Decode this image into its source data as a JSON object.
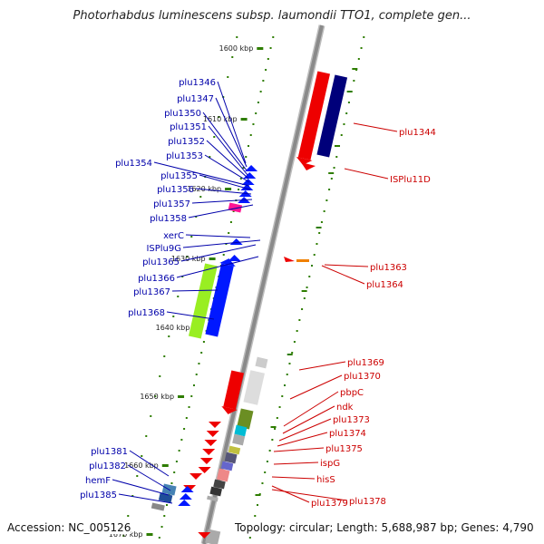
{
  "title": "Photorhabdus luminescens subsp. laumondii TTO1, complete gen...",
  "footer": {
    "accession": "Accession: NC_005126",
    "topology": "Topology: circular; Length: 5,688,987 bp; Genes: 4,790"
  },
  "colors": {
    "backbone": "#8a8a8a",
    "left_labels": "#0000aa",
    "right_labels": "#cc0000",
    "tick_marks": "#2e7d00"
  },
  "ticks": [
    "1600 kbp",
    "1610 kbp",
    "1620 kbp",
    "1630 kbp",
    "1640 kbp",
    "1650 kbp",
    "1660 kbp",
    "1670 kbp"
  ],
  "left_genes": [
    "plu1346",
    "plu1347",
    "plu1350",
    "plu1351",
    "plu1352",
    "plu1353",
    "plu1354",
    "plu1355",
    "plu1356",
    "plu1357",
    "plu1358",
    "xerC",
    "ISPlu9G",
    "plu1365",
    "plu1366",
    "plu1367",
    "plu1368",
    "plu1381",
    "plu1382",
    "hemF",
    "plu1385"
  ],
  "right_genes": [
    "plu1344",
    "ISPlu11D",
    "plu1363",
    "plu1364",
    "plu1369",
    "plu1370",
    "pbpC",
    "ndk",
    "plu1373",
    "plu1374",
    "plu1375",
    "ispG",
    "hisS",
    "plu1379",
    "plu1378"
  ]
}
